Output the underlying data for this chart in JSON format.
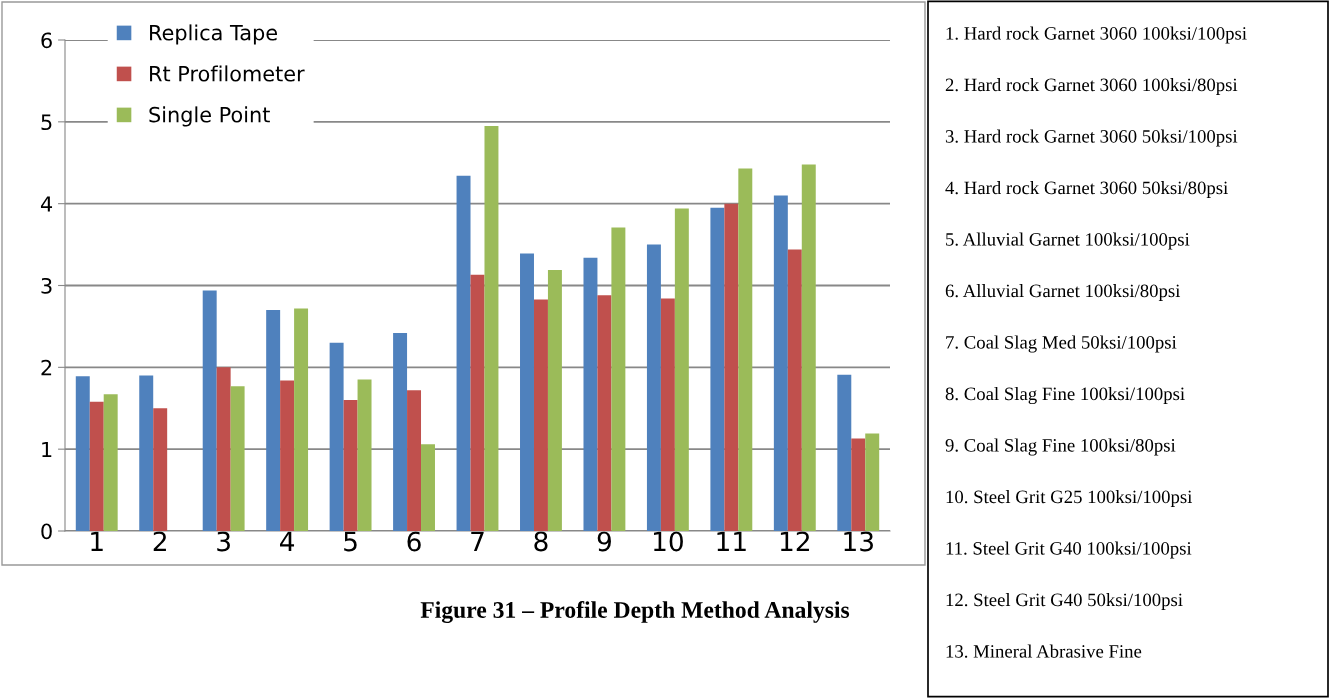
{
  "chart_data": {
    "type": "bar",
    "title": "Figure 31 – Profile Depth Method Analysis",
    "categories": [
      "1",
      "2",
      "3",
      "4",
      "5",
      "6",
      "7",
      "8",
      "9",
      "10",
      "11",
      "12",
      "13"
    ],
    "series": [
      {
        "name": "Replica Tape",
        "color": "#4f81bd",
        "values": [
          1.89,
          1.9,
          2.94,
          2.7,
          2.3,
          2.42,
          4.34,
          3.39,
          3.34,
          3.5,
          3.95,
          4.1,
          1.91
        ]
      },
      {
        "name": "Rt Profilometer",
        "color": "#c0504d",
        "values": [
          1.58,
          1.5,
          2.0,
          1.84,
          1.6,
          1.72,
          3.13,
          2.83,
          2.88,
          2.84,
          4.0,
          3.44,
          1.13
        ]
      },
      {
        "name": "Single Point",
        "color": "#9bbb59",
        "values": [
          1.67,
          null,
          1.77,
          2.72,
          1.85,
          1.06,
          4.95,
          3.19,
          3.71,
          3.94,
          4.43,
          4.48,
          1.19
        ]
      }
    ],
    "ylim": [
      0,
      6
    ],
    "yticks": [
      0,
      1,
      2,
      3,
      4,
      5,
      6
    ],
    "grid": "y",
    "legend": "top left",
    "annotations": [
      "1. Hard rock Garnet 3060 100ksi/100psi",
      "2. Hard rock Garnet 3060 100ksi/80psi",
      "3. Hard rock Garnet 3060 50ksi/100psi",
      "4. Hard rock Garnet 3060 50ksi/80psi",
      "5. Alluvial Garnet 100ksi/100psi",
      "6. Alluvial Garnet 100ksi/80psi",
      "7. Coal Slag Med 50ksi/100psi",
      "8. Coal Slag Fine 100ksi/100psi",
      "9. Coal Slag Fine 100ksi/80psi",
      "10. Steel Grit G25 100ksi/100psi",
      "11. Steel Grit G40 100ksi/100psi",
      "12. Steel Grit G40 50ksi/100psi",
      "13. Mineral Abrasive Fine"
    ]
  }
}
